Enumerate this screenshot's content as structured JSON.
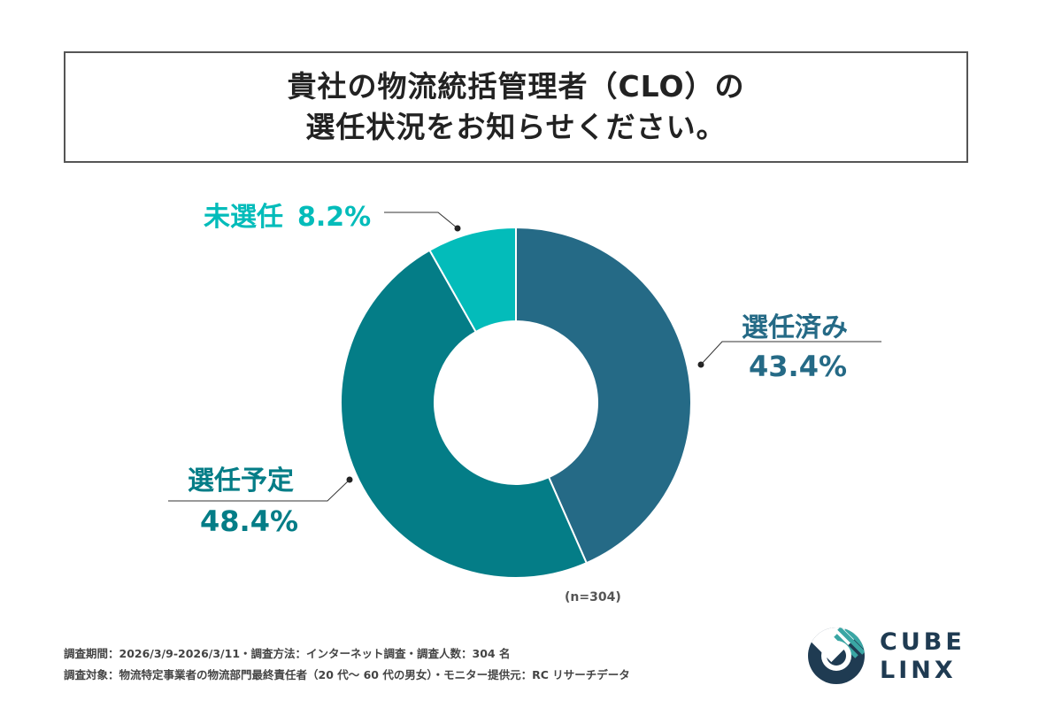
{
  "title": {
    "line1": "貴社の物流統括管理者（CLO）の",
    "line2": "選任状況をお知らせください。"
  },
  "chart_data": {
    "type": "pie",
    "donut": true,
    "slices": [
      {
        "label": "選任済み",
        "value": 43.4,
        "value_label": "43.4%",
        "color": "#256a86"
      },
      {
        "label": "選任予定",
        "value": 48.4,
        "value_label": "48.4%",
        "color": "#047d87"
      },
      {
        "label": "未選任",
        "value": 8.2,
        "value_label": "8.2%",
        "color": "#03bcba"
      }
    ],
    "sample_size": "(n=304)"
  },
  "footnotes": {
    "line1": "調査期間：2026/3/9-2026/3/11・調査方法：インターネット調査・調査人数：304 名",
    "line2": "調査対象：物流特定事業者の物流部門最終責任者（20 代〜 60 代の男女）・モニター提供元：RC リサーチデータ"
  },
  "logo": {
    "top": "CUBE",
    "bottom": "LINX",
    "color": "#1f3b52"
  }
}
